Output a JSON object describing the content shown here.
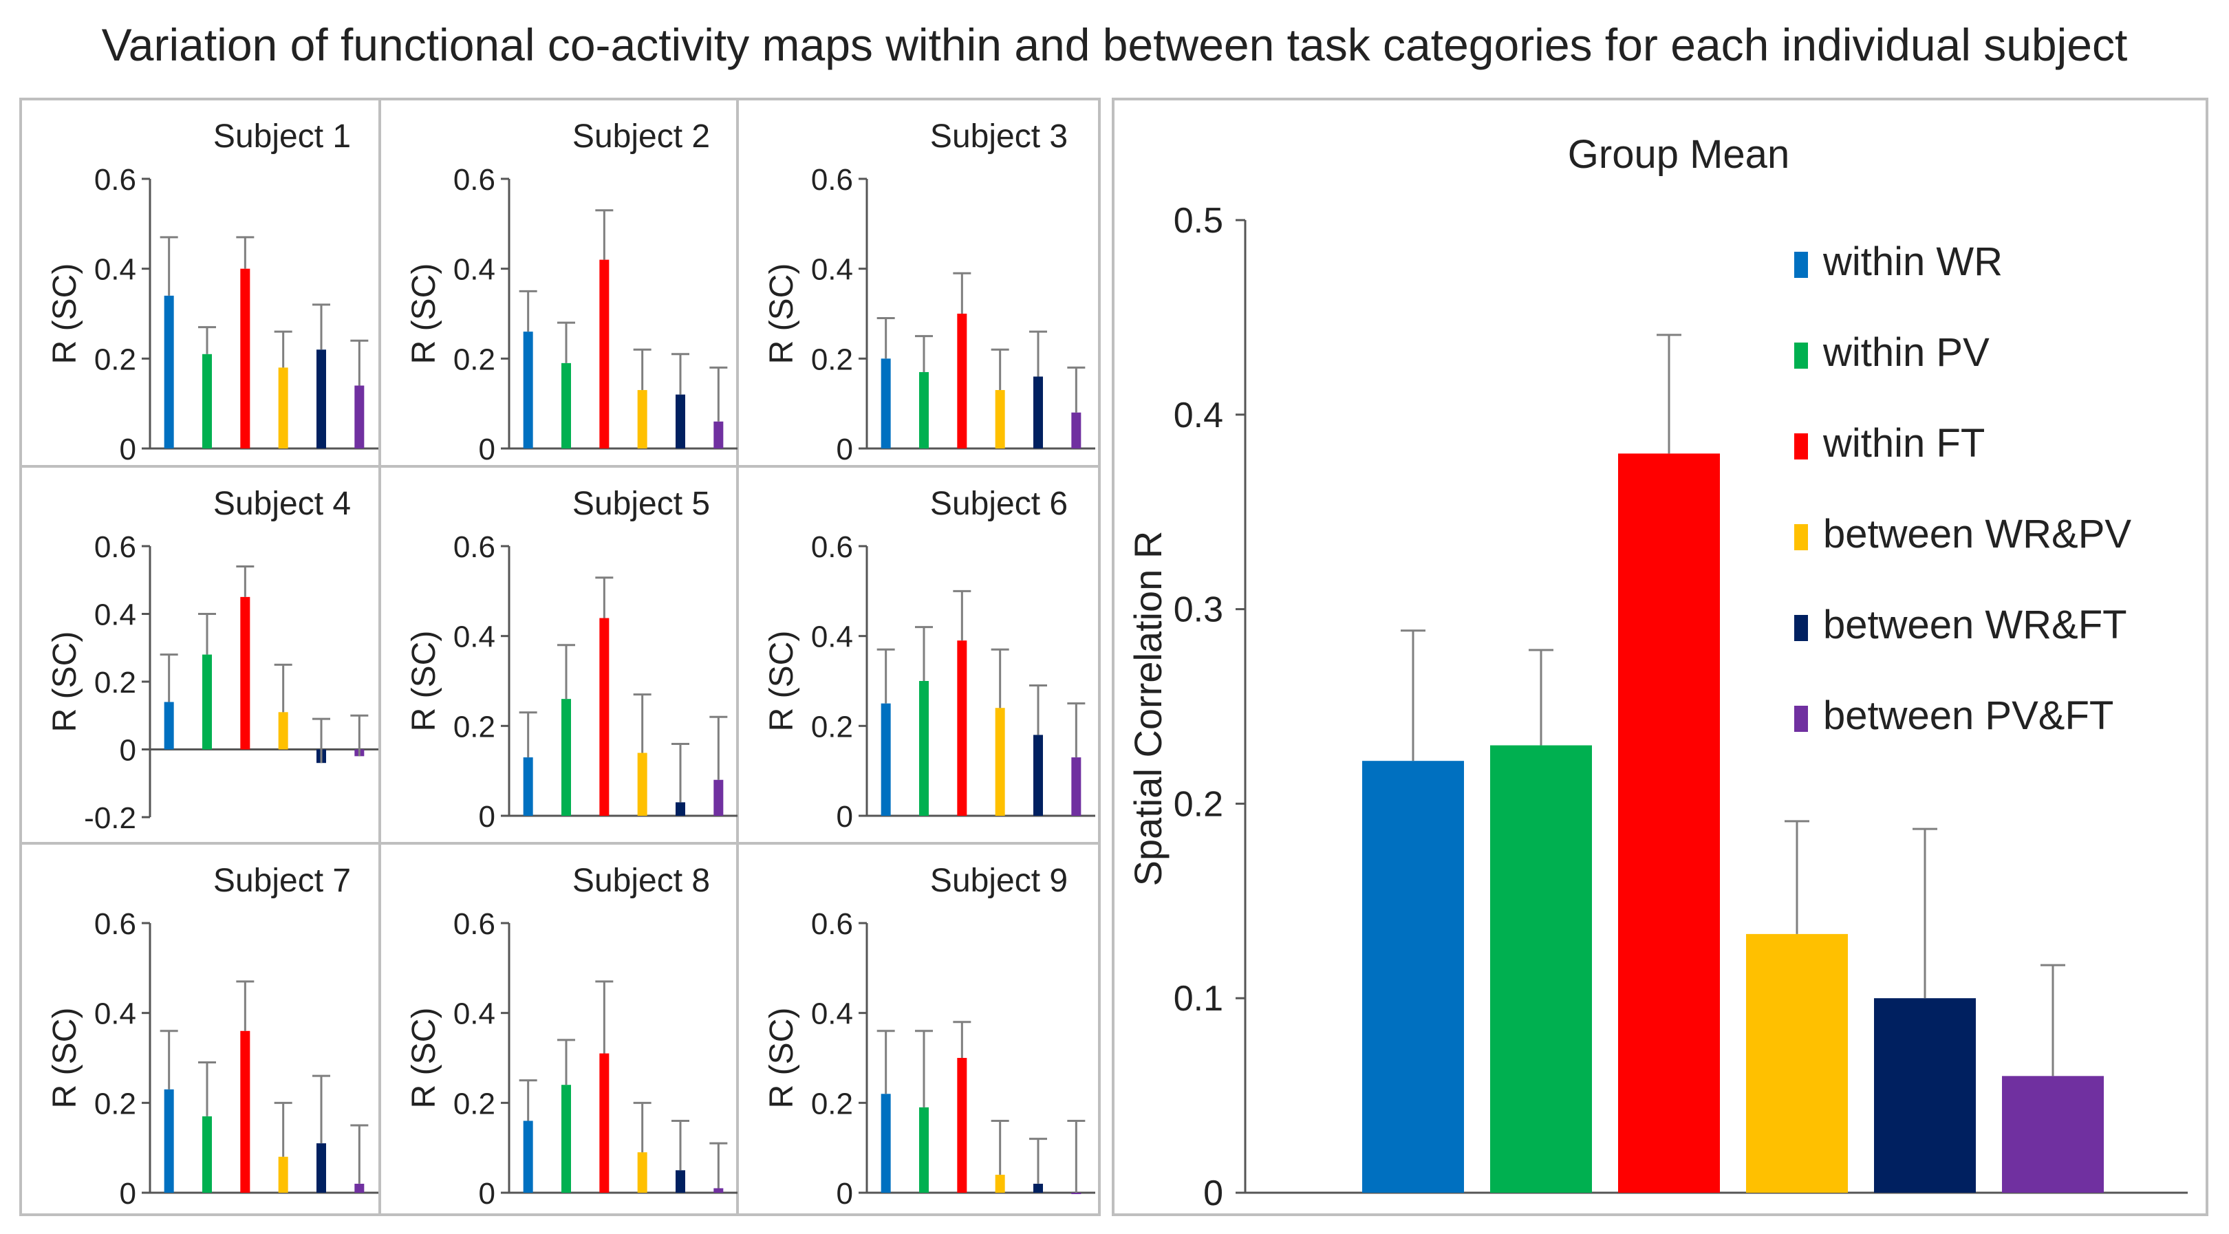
{
  "figure_title": "Variation of functional co-activity maps within and between task categories for each individual subject",
  "chart_data": [
    {
      "type": "bar",
      "title": "Subject 1",
      "ylabel": "R (SC)",
      "ylim": [
        0,
        0.6
      ],
      "yticks": [
        "0",
        "0.2",
        "0.4",
        "0.6"
      ],
      "values": [
        0.34,
        0.21,
        0.4,
        0.18,
        0.22,
        0.14
      ],
      "errors": [
        0.13,
        0.06,
        0.07,
        0.08,
        0.1,
        0.1
      ]
    },
    {
      "type": "bar",
      "title": "Subject 2",
      "ylabel": "R (SC)",
      "ylim": [
        0,
        0.6
      ],
      "yticks": [
        "0",
        "0.2",
        "0.4",
        "0.6"
      ],
      "values": [
        0.26,
        0.19,
        0.42,
        0.13,
        0.12,
        0.06
      ],
      "errors": [
        0.09,
        0.09,
        0.11,
        0.09,
        0.09,
        0.12
      ]
    },
    {
      "type": "bar",
      "title": "Subject 3",
      "ylabel": "R (SC)",
      "ylim": [
        0,
        0.6
      ],
      "yticks": [
        "0",
        "0.2",
        "0.4",
        "0.6"
      ],
      "values": [
        0.2,
        0.17,
        0.3,
        0.13,
        0.16,
        0.08
      ],
      "errors": [
        0.09,
        0.08,
        0.09,
        0.09,
        0.1,
        0.1
      ]
    },
    {
      "type": "bar",
      "title": "Subject 4",
      "ylabel": "R (SC)",
      "ylim": [
        -0.2,
        0.6
      ],
      "yticks": [
        "-0.2",
        "0",
        "0.2",
        "0.4",
        "0.6"
      ],
      "values": [
        0.14,
        0.28,
        0.45,
        0.11,
        -0.04,
        -0.02
      ],
      "errors": [
        0.14,
        0.12,
        0.09,
        0.14,
        0.13,
        0.12
      ]
    },
    {
      "type": "bar",
      "title": "Subject 5",
      "ylabel": "R (SC)",
      "ylim": [
        0,
        0.6
      ],
      "yticks": [
        "0",
        "0.2",
        "0.4",
        "0.6"
      ],
      "values": [
        0.13,
        0.26,
        0.44,
        0.14,
        0.03,
        0.08
      ],
      "errors": [
        0.1,
        0.12,
        0.09,
        0.13,
        0.13,
        0.14
      ]
    },
    {
      "type": "bar",
      "title": "Subject 6",
      "ylabel": "R (SC)",
      "ylim": [
        0,
        0.6
      ],
      "yticks": [
        "0",
        "0.2",
        "0.4",
        "0.6"
      ],
      "values": [
        0.25,
        0.3,
        0.39,
        0.24,
        0.18,
        0.13
      ],
      "errors": [
        0.12,
        0.12,
        0.11,
        0.13,
        0.11,
        0.12
      ]
    },
    {
      "type": "bar",
      "title": "Subject 7",
      "ylabel": "R (SC)",
      "ylim": [
        0,
        0.6
      ],
      "yticks": [
        "0",
        "0.2",
        "0.4",
        "0.6"
      ],
      "values": [
        0.23,
        0.17,
        0.36,
        0.08,
        0.11,
        0.02
      ],
      "errors": [
        0.13,
        0.12,
        0.11,
        0.12,
        0.15,
        0.13
      ]
    },
    {
      "type": "bar",
      "title": "Subject 8",
      "ylabel": "R (SC)",
      "ylim": [
        0,
        0.6
      ],
      "yticks": [
        "0",
        "0.2",
        "0.4",
        "0.6"
      ],
      "values": [
        0.16,
        0.24,
        0.31,
        0.09,
        0.05,
        0.01
      ],
      "errors": [
        0.09,
        0.1,
        0.16,
        0.11,
        0.11,
        0.1
      ]
    },
    {
      "type": "bar",
      "title": "Subject 9",
      "ylabel": "R (SC)",
      "ylim": [
        0,
        0.6
      ],
      "yticks": [
        "0",
        "0.2",
        "0.4",
        "0.6"
      ],
      "values": [
        0.22,
        0.19,
        0.3,
        0.04,
        0.02,
        0.0
      ],
      "errors": [
        0.14,
        0.17,
        0.08,
        0.12,
        0.1,
        0.16
      ]
    },
    {
      "type": "bar",
      "title": "Group  Mean",
      "ylabel": "Spatial Correlation  R",
      "ylim": [
        0,
        0.5
      ],
      "yticks": [
        "0",
        "0.1",
        "0.2",
        "0.3",
        "0.4",
        "0.5"
      ],
      "legend_position": "top-right",
      "categories": [
        "within WR",
        "within PV",
        "within FT",
        "between WR&PV",
        "between WR&FT",
        "between PV&FT"
      ],
      "values": [
        0.222,
        0.23,
        0.38,
        0.133,
        0.1,
        0.06
      ],
      "errors": [
        0.067,
        0.049,
        0.061,
        0.058,
        0.087,
        0.057
      ]
    }
  ],
  "legend": [
    "within WR",
    "within PV",
    "within FT",
    "between WR&PV",
    "between WR&FT",
    "between PV&FT"
  ],
  "colors": [
    "#0070C0",
    "#00B050",
    "#FF0000",
    "#FFC000",
    "#002060",
    "#7030A0"
  ]
}
